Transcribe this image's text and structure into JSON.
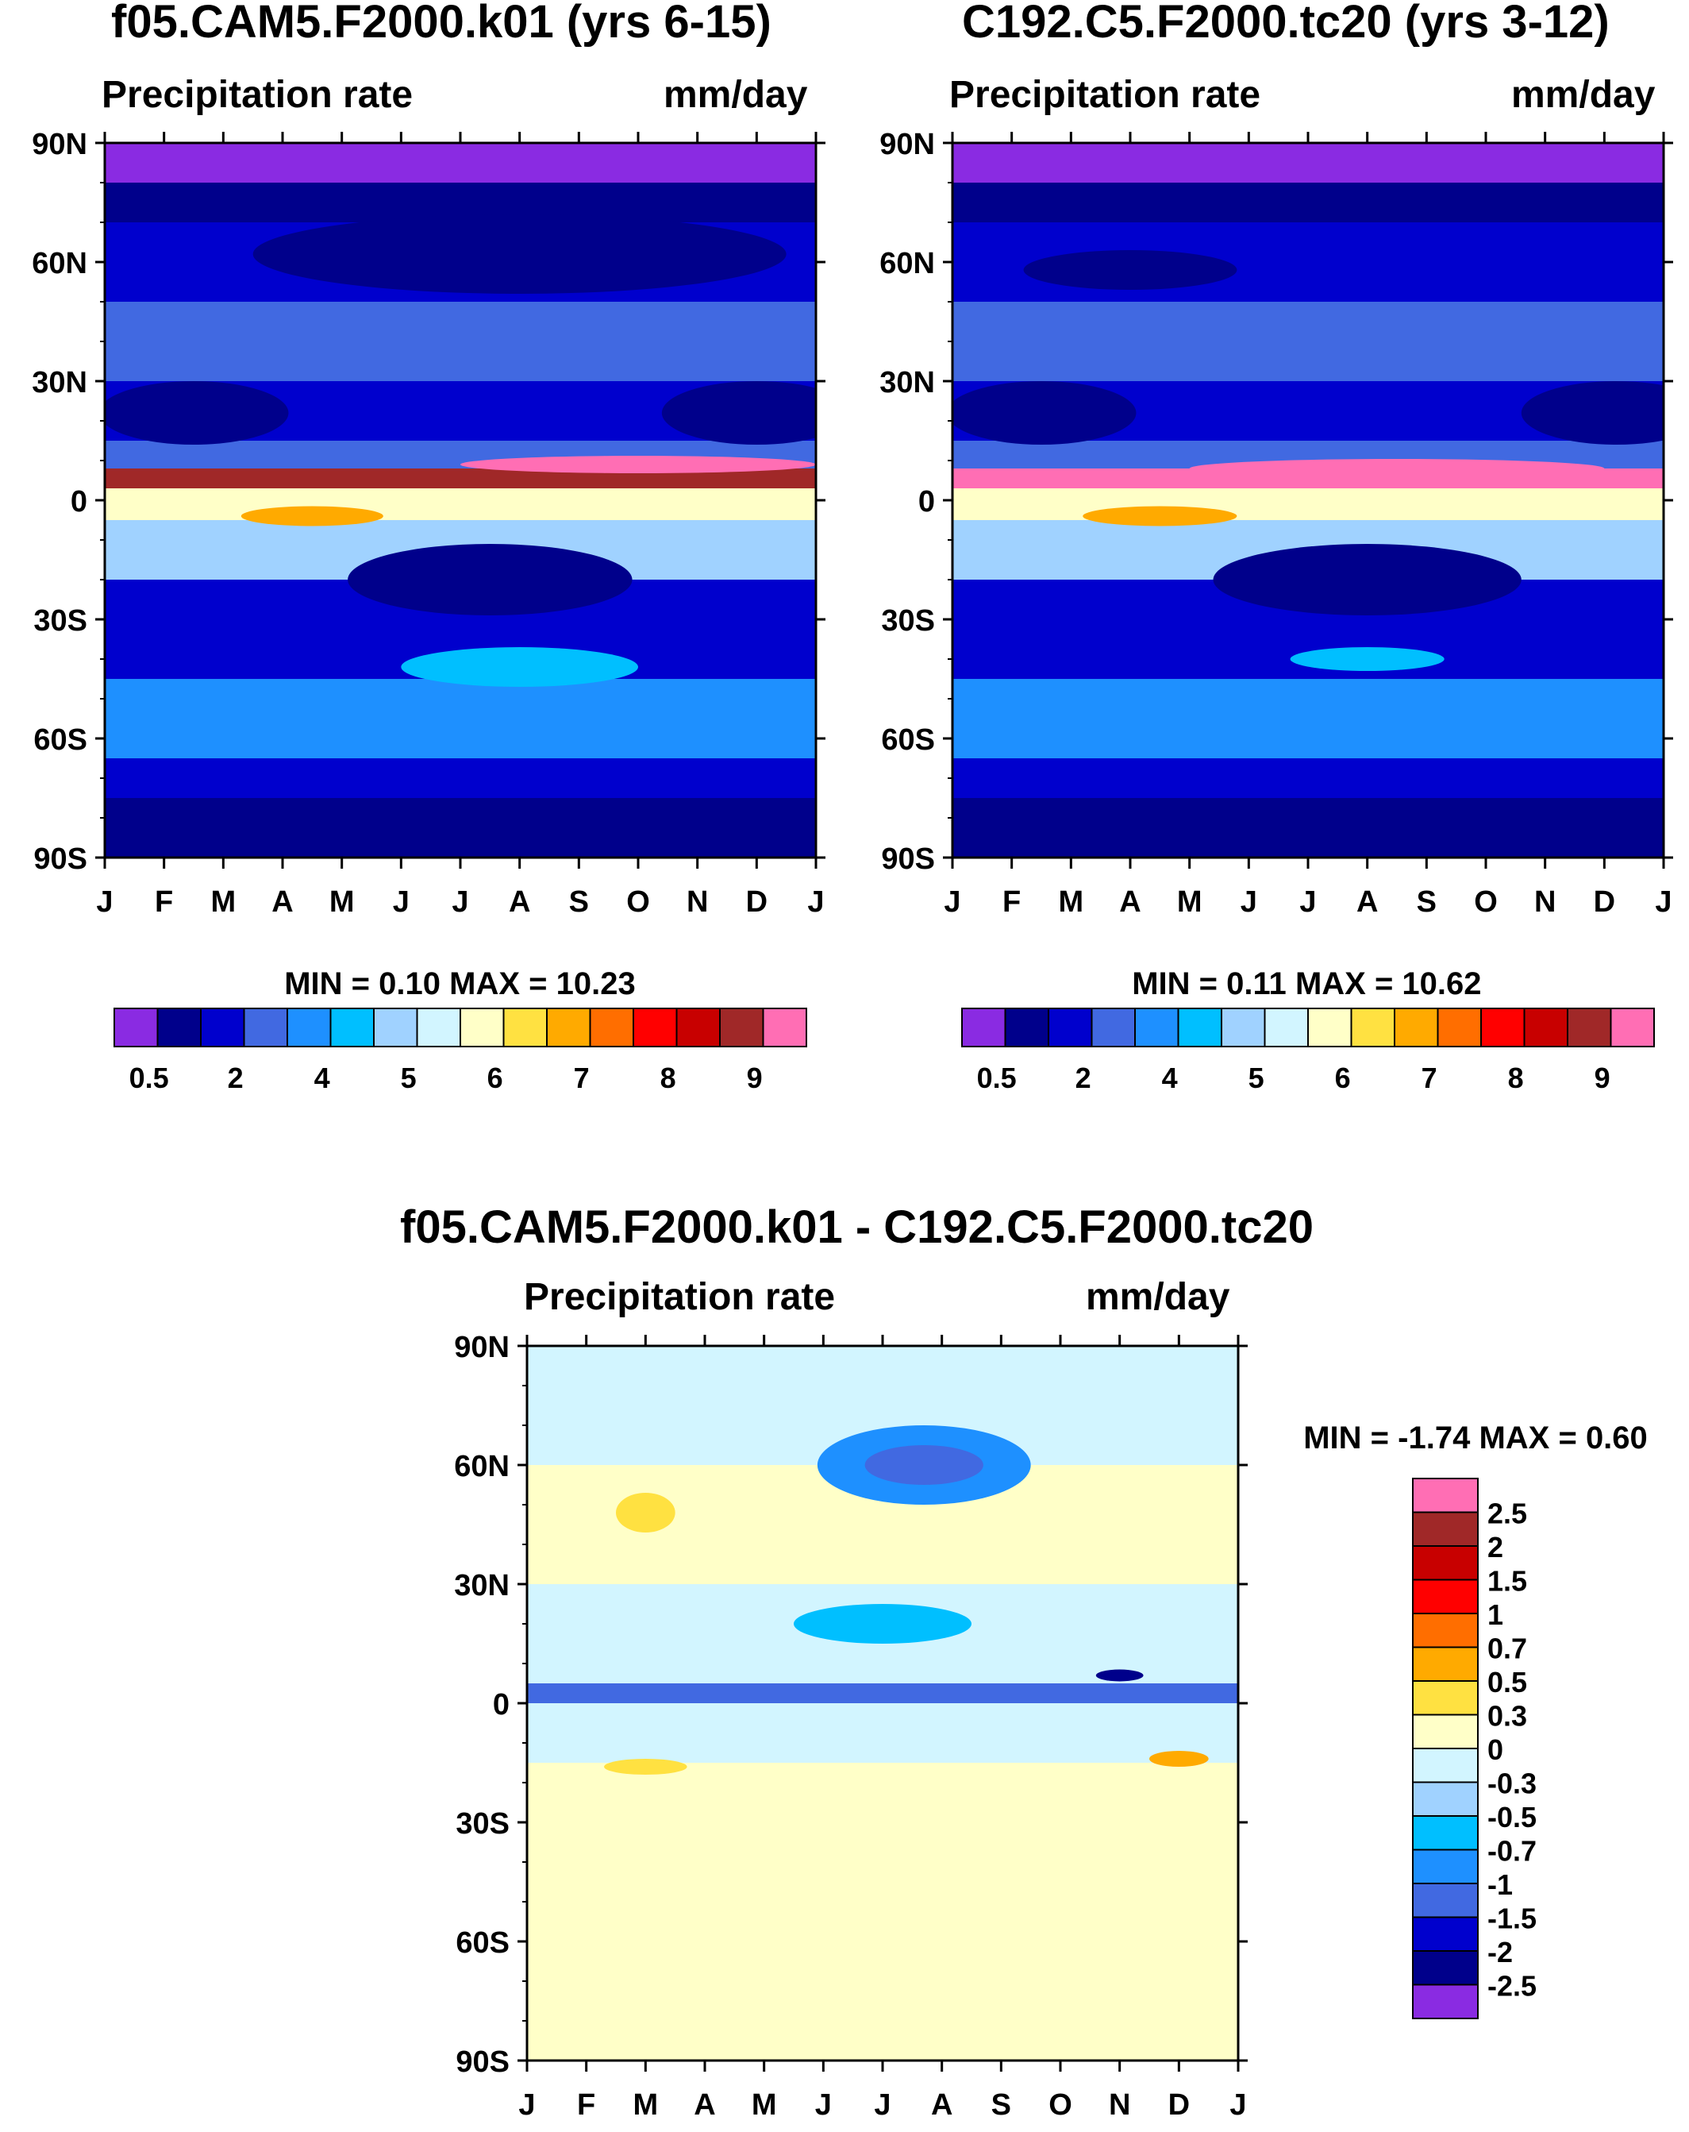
{
  "panels": [
    {
      "title": "f05.CAM5.F2000.k01 (yrs 6-15)",
      "left_label": "Precipitation rate",
      "right_label": "mm/day",
      "min_label": "MIN =",
      "min_value": "0.10",
      "max_label": "MAX =",
      "max_value": "10.23"
    },
    {
      "title": "C192.C5.F2000.tc20 (yrs 3-12)",
      "left_label": "Precipitation rate",
      "right_label": "mm/day",
      "min_label": "MIN =",
      "min_value": "0.11",
      "max_label": "MAX =",
      "max_value": "10.62"
    },
    {
      "title": "f05.CAM5.F2000.k01 - C192.C5.F2000.tc20",
      "left_label": "Precipitation rate",
      "right_label": "mm/day",
      "min_label": "MIN =",
      "min_value": "-1.74",
      "max_label": "MAX =",
      "max_value": "0.60"
    }
  ],
  "chart_data": [
    {
      "type": "heatmap",
      "title": "f05.CAM5.F2000.k01 (yrs 6-15)",
      "variable": "Precipitation rate",
      "units": "mm/day",
      "x_ticks": [
        "J",
        "F",
        "M",
        "A",
        "M",
        "J",
        "J",
        "A",
        "S",
        "O",
        "N",
        "D",
        "J"
      ],
      "y_ticks": [
        "90N",
        "60N",
        "30N",
        "0",
        "30S",
        "60S",
        "90S"
      ],
      "y_values": [
        90,
        60,
        30,
        0,
        -30,
        -60,
        -90
      ],
      "levels": [
        "0.5",
        "2",
        "4",
        "5",
        "6",
        "7",
        "8",
        "9"
      ],
      "colors": [
        "#8a2be2",
        "#00008b",
        "#0000cd",
        "#4169e1",
        "#1e90ff",
        "#00bfff",
        "#a0d2ff",
        "#d2f5ff",
        "#ffffc8",
        "#ffe141",
        "#ffaa00",
        "#ff6e00",
        "#ff0000",
        "#c80000",
        "#a02828",
        "#ff6eb4"
      ],
      "zonal_profile_levels": [
        {
          "lat": 90,
          "level": 0
        },
        {
          "lat": 80,
          "level": 1
        },
        {
          "lat": 70,
          "level": 2
        },
        {
          "lat": 50,
          "level": 3
        },
        {
          "lat": 30,
          "level": 2
        },
        {
          "lat": 15,
          "level": 3
        },
        {
          "lat": 8,
          "level": 14
        },
        {
          "lat": 3,
          "level": 8
        },
        {
          "lat": -5,
          "level": 6
        },
        {
          "lat": -20,
          "level": 2
        },
        {
          "lat": -45,
          "level": 4
        },
        {
          "lat": -65,
          "level": 2
        },
        {
          "lat": -75,
          "level": 1
        },
        {
          "lat": -90,
          "level": 0
        }
      ],
      "min": 0.1,
      "max": 10.23
    },
    {
      "type": "heatmap",
      "title": "C192.C5.F2000.tc20 (yrs 3-12)",
      "variable": "Precipitation rate",
      "units": "mm/day",
      "x_ticks": [
        "J",
        "F",
        "M",
        "A",
        "M",
        "J",
        "J",
        "A",
        "S",
        "O",
        "N",
        "D",
        "J"
      ],
      "y_ticks": [
        "90N",
        "60N",
        "30N",
        "0",
        "30S",
        "60S",
        "90S"
      ],
      "y_values": [
        90,
        60,
        30,
        0,
        -30,
        -60,
        -90
      ],
      "levels": [
        "0.5",
        "2",
        "4",
        "5",
        "6",
        "7",
        "8",
        "9"
      ],
      "colors": [
        "#8a2be2",
        "#00008b",
        "#0000cd",
        "#4169e1",
        "#1e90ff",
        "#00bfff",
        "#a0d2ff",
        "#d2f5ff",
        "#ffffc8",
        "#ffe141",
        "#ffaa00",
        "#ff6e00",
        "#ff0000",
        "#c80000",
        "#a02828",
        "#ff6eb4"
      ],
      "zonal_profile_levels": [
        {
          "lat": 90,
          "level": 0
        },
        {
          "lat": 80,
          "level": 1
        },
        {
          "lat": 70,
          "level": 2
        },
        {
          "lat": 50,
          "level": 3
        },
        {
          "lat": 30,
          "level": 2
        },
        {
          "lat": 15,
          "level": 3
        },
        {
          "lat": 8,
          "level": 15
        },
        {
          "lat": 3,
          "level": 8
        },
        {
          "lat": -5,
          "level": 6
        },
        {
          "lat": -20,
          "level": 2
        },
        {
          "lat": -45,
          "level": 4
        },
        {
          "lat": -65,
          "level": 2
        },
        {
          "lat": -75,
          "level": 1
        },
        {
          "lat": -90,
          "level": 0
        }
      ],
      "min": 0.11,
      "max": 10.62
    },
    {
      "type": "heatmap",
      "title": "f05.CAM5.F2000.k01 - C192.C5.F2000.tc20",
      "variable": "Precipitation rate",
      "units": "mm/day",
      "x_ticks": [
        "J",
        "F",
        "M",
        "A",
        "M",
        "J",
        "J",
        "A",
        "S",
        "O",
        "N",
        "D",
        "J"
      ],
      "y_ticks": [
        "90N",
        "60N",
        "30N",
        "0",
        "30S",
        "60S",
        "90S"
      ],
      "y_values": [
        90,
        60,
        30,
        0,
        -30,
        -60,
        -90
      ],
      "levels": [
        "2.5",
        "2",
        "1.5",
        "1",
        "0.7",
        "0.5",
        "0.3",
        "0",
        "-0.3",
        "-0.5",
        "-0.7",
        "-1",
        "-1.5",
        "-2",
        "-2.5"
      ],
      "colors": [
        "#ff6eb4",
        "#a02828",
        "#c80000",
        "#ff0000",
        "#ff6e00",
        "#ffaa00",
        "#ffe141",
        "#ffffc8",
        "#d2f5ff",
        "#a0d2ff",
        "#00bfff",
        "#1e90ff",
        "#4169e1",
        "#0000cd",
        "#00008b",
        "#8a2be2"
      ],
      "zonal_profile_levels": [
        {
          "lat": 90,
          "level": 8
        },
        {
          "lat": 60,
          "level": 7
        },
        {
          "lat": 30,
          "level": 8
        },
        {
          "lat": 5,
          "level": 12
        },
        {
          "lat": 0,
          "level": 8
        },
        {
          "lat": -15,
          "level": 7
        },
        {
          "lat": -45,
          "level": 7
        },
        {
          "lat": -90,
          "level": 8
        }
      ],
      "min": -1.74,
      "max": 0.6
    }
  ]
}
